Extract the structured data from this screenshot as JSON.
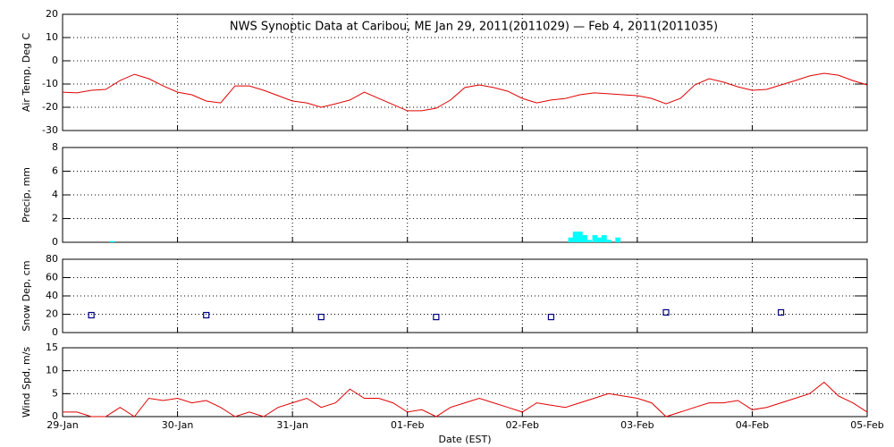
{
  "chart_data": [
    {
      "type": "line",
      "title": "NWS Synoptic Data at Caribou, ME   Jan 29, 2011(2011029) — Feb  4, 2011(2011035)",
      "ylabel": "Air Temp, Deg C",
      "color": "#e00000",
      "grid": true,
      "xlim": [
        0,
        7
      ],
      "xticks": [
        0,
        1,
        2,
        3,
        4,
        5,
        6,
        7
      ],
      "ylim": [
        -30,
        20
      ],
      "yticks": [
        -30,
        -20,
        -10,
        0,
        10,
        20
      ],
      "x": [
        0,
        0.125,
        0.25,
        0.375,
        0.5,
        0.625,
        0.75,
        0.875,
        1,
        1.125,
        1.25,
        1.375,
        1.5,
        1.625,
        1.75,
        1.875,
        2,
        2.125,
        2.25,
        2.375,
        2.5,
        2.625,
        2.75,
        2.875,
        3,
        3.125,
        3.25,
        3.375,
        3.5,
        3.625,
        3.75,
        3.875,
        4,
        4.125,
        4.25,
        4.375,
        4.5,
        4.625,
        4.75,
        4.875,
        5,
        5.125,
        5.25,
        5.375,
        5.5,
        5.625,
        5.75,
        5.875,
        6,
        6.125,
        6.25,
        6.375,
        6.5,
        6.625,
        6.75,
        6.875,
        7
      ],
      "values": [
        -13.5,
        -13.8,
        -12.7,
        -12.3,
        -8.5,
        -5.8,
        -7.7,
        -10.8,
        -13.5,
        -14.6,
        -17.3,
        -18.1,
        -10.8,
        -10.8,
        -12.7,
        -15,
        -17.3,
        -18.1,
        -20,
        -18.5,
        -16.9,
        -13.5,
        -16.2,
        -18.8,
        -21.5,
        -21.5,
        -20.4,
        -16.9,
        -11.5,
        -10.4,
        -11.5,
        -13.1,
        -16.2,
        -18.1,
        -16.9,
        -16.2,
        -14.6,
        -13.8,
        -14.2,
        -14.6,
        -15,
        -16.2,
        -18.5,
        -16.2,
        -10.4,
        -7.7,
        -9.2,
        -11.2,
        -12.7,
        -12.3,
        -10.4,
        -8.5,
        -6.5,
        -5.4,
        -6.2,
        -8.5,
        -10.4
      ]
    },
    {
      "type": "bar",
      "ylabel": "Precip, mm",
      "color": "#00ffff",
      "grid": true,
      "xlim": [
        0,
        7
      ],
      "xticks": [
        0,
        1,
        2,
        3,
        4,
        5,
        6,
        7
      ],
      "ylim": [
        0,
        8
      ],
      "yticks": [
        0,
        2,
        4,
        6,
        8
      ],
      "x": [
        0.43,
        4.42,
        4.46,
        4.5,
        4.54,
        4.58,
        4.63,
        4.67,
        4.71,
        4.75,
        4.83
      ],
      "values": [
        0.1,
        0.4,
        0.9,
        0.9,
        0.6,
        0.2,
        0.6,
        0.4,
        0.6,
        0.2,
        0.4
      ]
    },
    {
      "type": "scatter",
      "ylabel": "Snow Dep, cm",
      "color": "#000080",
      "grid": true,
      "xlim": [
        0,
        7
      ],
      "xticks": [
        0,
        1,
        2,
        3,
        4,
        5,
        6,
        7
      ],
      "ylim": [
        0,
        80
      ],
      "yticks": [
        0,
        20,
        40,
        60,
        80
      ],
      "x": [
        0.25,
        1.25,
        2.25,
        3.25,
        4.25,
        5.25,
        6.25
      ],
      "values": [
        19,
        19,
        17,
        17,
        17,
        22,
        22
      ]
    },
    {
      "type": "line",
      "ylabel": "Wind Spd, m/s",
      "xlabel": "Date (EST)",
      "color": "#e00000",
      "grid": true,
      "xlim": [
        0,
        7
      ],
      "xticks": [
        {
          "value": 0,
          "label": "29-Jan"
        },
        {
          "value": 1,
          "label": "30-Jan"
        },
        {
          "value": 2,
          "label": "31-Jan"
        },
        {
          "value": 3,
          "label": "01-Feb"
        },
        {
          "value": 4,
          "label": "02-Feb"
        },
        {
          "value": 5,
          "label": "03-Feb"
        },
        {
          "value": 6,
          "label": "04-Feb"
        },
        {
          "value": 7,
          "label": "05-Feb"
        }
      ],
      "ylim": [
        0,
        15
      ],
      "yticks": [
        0,
        5,
        10,
        15
      ],
      "x": [
        0,
        0.125,
        0.25,
        0.375,
        0.5,
        0.625,
        0.75,
        0.875,
        1,
        1.125,
        1.25,
        1.375,
        1.5,
        1.625,
        1.75,
        1.875,
        2,
        2.125,
        2.25,
        2.375,
        2.5,
        2.625,
        2.75,
        2.875,
        3,
        3.125,
        3.25,
        3.375,
        3.5,
        3.625,
        3.75,
        3.875,
        4,
        4.125,
        4.25,
        4.375,
        4.5,
        4.625,
        4.75,
        4.875,
        5,
        5.125,
        5.25,
        5.375,
        5.5,
        5.625,
        5.75,
        5.875,
        6,
        6.125,
        6.25,
        6.375,
        6.5,
        6.625,
        6.75,
        6.875,
        7
      ],
      "values": [
        1,
        1,
        0,
        0,
        2,
        0,
        4,
        3.5,
        4,
        3,
        3.5,
        2,
        0,
        1,
        0,
        2,
        3,
        4,
        2,
        3,
        6,
        4,
        4,
        3,
        1,
        1.5,
        0,
        2,
        3,
        4,
        3,
        2,
        1,
        3,
        2.5,
        2,
        3,
        4,
        5,
        4.5,
        4,
        3,
        0,
        1,
        2,
        3,
        3,
        3.5,
        1.5,
        2,
        3,
        4,
        5,
        7.5,
        4.5,
        3,
        1
      ]
    }
  ]
}
